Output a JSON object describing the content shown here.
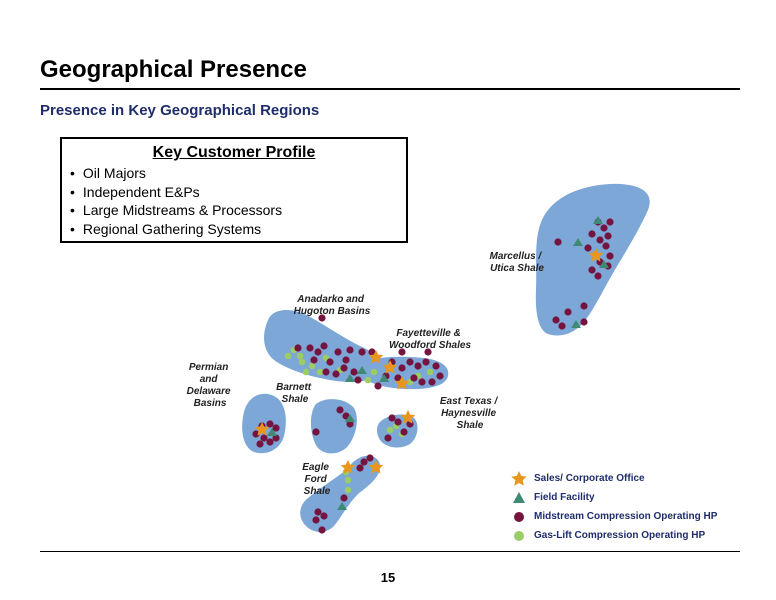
{
  "header": {
    "title": "Geographical Presence",
    "subtitle": "Presence in Key Geographical Regions"
  },
  "customer_profile": {
    "title": "Key Customer Profile",
    "items": [
      "Oil Majors",
      "Independent E&Ps",
      "Large Midstreams & Processors",
      "Regional Gathering Systems"
    ]
  },
  "regions": {
    "marcellus": [
      "Marcellus /",
      "Utica Shale"
    ],
    "anadarko": [
      "Anadarko and",
      "Hugoton Basins"
    ],
    "fayetteville": [
      "Fayetteville &",
      "Woodford Shales"
    ],
    "permian": [
      "Permian",
      "and",
      "Delaware",
      "Basins"
    ],
    "barnett": [
      "Barnett",
      "Shale"
    ],
    "east_texas": [
      "East Texas /",
      "Haynesville",
      "Shale"
    ],
    "eagle_ford": [
      "Eagle",
      "Ford",
      "Shale"
    ]
  },
  "legend": {
    "sales": "Sales/ Corporate Office",
    "field": "Field Facility",
    "midstream": "Midstream Compression Operating HP",
    "gaslift": "Gas-Lift Compression Operating HP"
  },
  "colors": {
    "region_fill": "#7ca7d6",
    "sales_star": "#e8961e",
    "field_triangle": "#3e8a74",
    "midstream_dot": "#75153f",
    "gaslift_dot": "#9ccc65",
    "title_blue": "#1f2d6b"
  },
  "footer": {
    "page_number": "15"
  }
}
